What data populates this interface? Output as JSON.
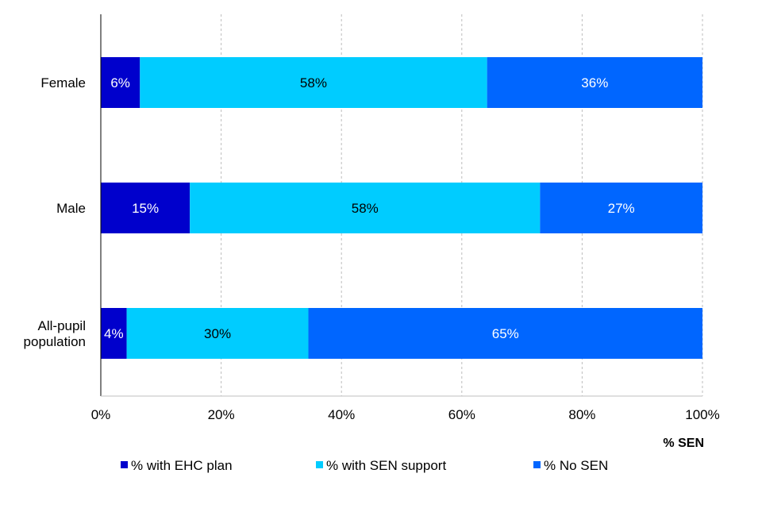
{
  "chart_data": {
    "type": "bar",
    "orientation": "horizontal",
    "stacked": true,
    "categories": [
      "Female",
      "Male",
      "All-pupil population"
    ],
    "category_label_lines": [
      [
        "Female"
      ],
      [
        "Male"
      ],
      [
        "All-pupil",
        "population"
      ]
    ],
    "series": [
      {
        "name": "% with EHC plan",
        "color": "#0000cc",
        "label_color": "#ffffff",
        "values": [
          6.5,
          14.8,
          4.3
        ],
        "labels": [
          "6%",
          "15%",
          "4%"
        ]
      },
      {
        "name": "% with SEN support",
        "color": "#00ccff",
        "label_color": "#000000",
        "values": [
          57.7,
          58.2,
          30.2
        ],
        "labels": [
          "58%",
          "58%",
          "30%"
        ]
      },
      {
        "name": "% No SEN",
        "color": "#0066ff",
        "label_color": "#ffffff",
        "values": [
          35.8,
          27.0,
          65.5
        ],
        "labels": [
          "36%",
          "27%",
          "65%"
        ]
      }
    ],
    "xlim": [
      0,
      100
    ],
    "xticks": [
      0,
      20,
      40,
      60,
      80,
      100
    ],
    "xtick_labels": [
      "0%",
      "20%",
      "40%",
      "60%",
      "80%",
      "100%"
    ],
    "xlabel": "% SEN",
    "ylabel": "",
    "title": "",
    "grid": "vertical dashed",
    "legend_position": "bottom"
  }
}
